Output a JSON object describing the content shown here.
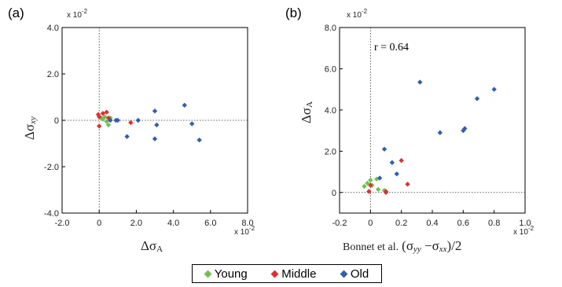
{
  "chart_data": [
    {
      "panel": "(a)",
      "type": "scatter",
      "multiplier_x": "x 10",
      "multiplier_x_exp": "-2",
      "multiplier_y": "x 10",
      "multiplier_y_exp": "-2",
      "xlim": [
        -2.0,
        8.0
      ],
      "ylim": [
        -4.0,
        4.0
      ],
      "xticks": [
        "-2.0",
        "0",
        "2.0",
        "4.0",
        "6.0",
        "8.0"
      ],
      "yticks": [
        "4.0",
        "2.0",
        "0",
        "-2.0",
        "-4.0"
      ],
      "xlabel": "Δσ",
      "xlabel_sub": "A",
      "ylabel": "Δσ",
      "ylabel_sub": "xy",
      "series": [
        {
          "name": "Young",
          "color": "#70c050",
          "x": [
            0.1,
            0.2,
            0.4,
            0.5,
            0.3,
            0.6
          ],
          "y": [
            0.1,
            0.05,
            -0.05,
            -0.2,
            0.15,
            0.1
          ]
        },
        {
          "name": "Middle",
          "color": "#e03030",
          "x": [
            -0.05,
            0.0,
            0.2,
            0.4,
            0.5,
            0.0,
            1.7
          ],
          "y": [
            0.25,
            -0.25,
            0.3,
            0.35,
            0.1,
            0.15,
            -0.1
          ]
        },
        {
          "name": "Old",
          "color": "#3060b0",
          "x": [
            0.6,
            0.9,
            1.0,
            1.5,
            2.1,
            3.0,
            3.0,
            3.1,
            4.6,
            5.0,
            5.4
          ],
          "y": [
            0.0,
            0.0,
            0.0,
            -0.7,
            0.0,
            0.4,
            -0.8,
            -0.2,
            0.65,
            -0.15,
            -0.85
          ]
        }
      ]
    },
    {
      "panel": "(b)",
      "type": "scatter",
      "multiplier_x": "x 10",
      "multiplier_x_exp": "-2",
      "multiplier_y": "x 10",
      "multiplier_y_exp": "-2",
      "xlim": [
        -0.2,
        1.0
      ],
      "ylim": [
        -1.0,
        8.0
      ],
      "xticks": [
        "-0.2",
        "0",
        "0.2",
        "0.4",
        "0.6",
        "0.8",
        "1.0"
      ],
      "yticks": [
        "8.0",
        "6.0",
        "4.0",
        "2.0",
        "0"
      ],
      "xlabel_prefix": "Bonnet et al.",
      "xlabel_formula": "(σ",
      "xlabel_sub1": "yy",
      "xlabel_mid": " −σ",
      "xlabel_sub2": "xx",
      "xlabel_suffix": ")/2",
      "ylabel": "Δσ",
      "ylabel_sub": "A",
      "annotation": "r = 0.64",
      "series": [
        {
          "name": "Young",
          "color": "#70c050",
          "x": [
            -0.04,
            -0.02,
            0.0,
            0.01,
            0.04,
            0.05,
            0.09
          ],
          "y": [
            0.3,
            0.45,
            0.6,
            0.35,
            0.65,
            0.15,
            0.1
          ]
        },
        {
          "name": "Middle",
          "color": "#e03030",
          "x": [
            -0.01,
            0.0,
            0.1,
            0.2,
            0.24,
            0.1
          ],
          "y": [
            0.05,
            0.35,
            0.05,
            1.55,
            0.4,
            0.0
          ]
        },
        {
          "name": "Old",
          "color": "#3060b0",
          "x": [
            0.06,
            0.09,
            0.14,
            0.17,
            0.32,
            0.45,
            0.6,
            0.61,
            0.69,
            0.8
          ],
          "y": [
            0.7,
            2.1,
            1.45,
            0.9,
            5.35,
            2.9,
            3.0,
            3.1,
            4.55,
            5.0
          ]
        }
      ]
    }
  ],
  "legend": {
    "items": [
      {
        "label": "Young",
        "color": "#70c050"
      },
      {
        "label": "Middle",
        "color": "#e03030"
      },
      {
        "label": "Old",
        "color": "#3060b0"
      }
    ]
  }
}
